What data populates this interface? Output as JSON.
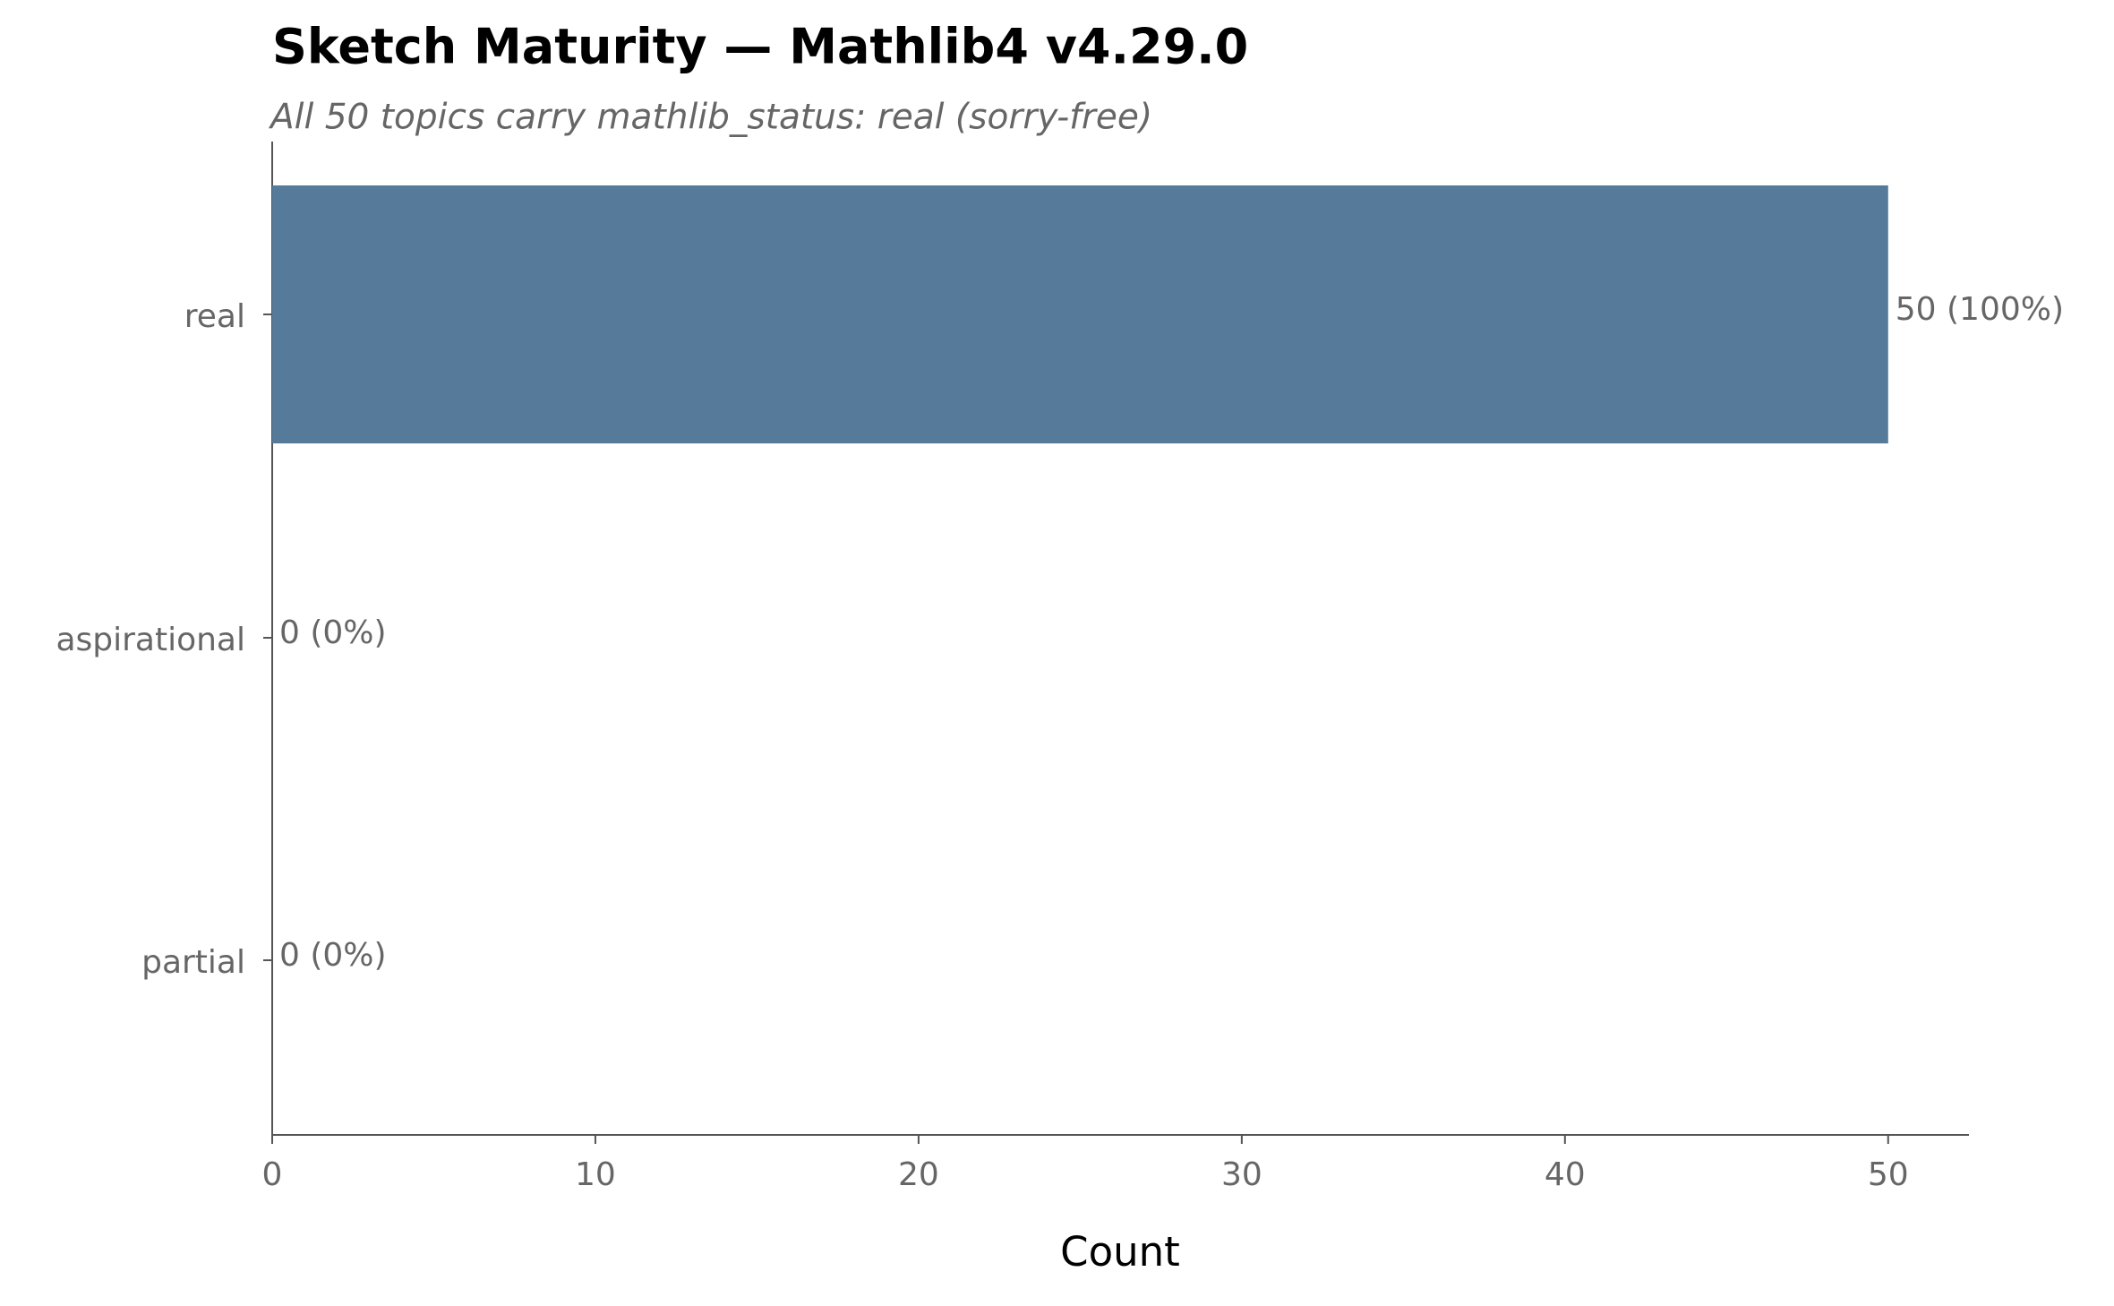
{
  "chart_data": {
    "type": "bar",
    "orientation": "horizontal",
    "title": "Sketch Maturity — Mathlib4 v4.29.0",
    "subtitle": "All 50 topics carry mathlib_status: real (sorry-free)",
    "x_label": "Count",
    "categories": [
      "real",
      "aspirational",
      "partial"
    ],
    "values": [
      50,
      0,
      0
    ],
    "value_labels": [
      "50 (100%)",
      "0 (0%)",
      "0 (0%)"
    ],
    "color": "#557a9a",
    "xlim": [
      0,
      52.5
    ],
    "xticks": [
      0,
      10,
      20,
      30,
      40,
      50
    ],
    "grid": false
  }
}
